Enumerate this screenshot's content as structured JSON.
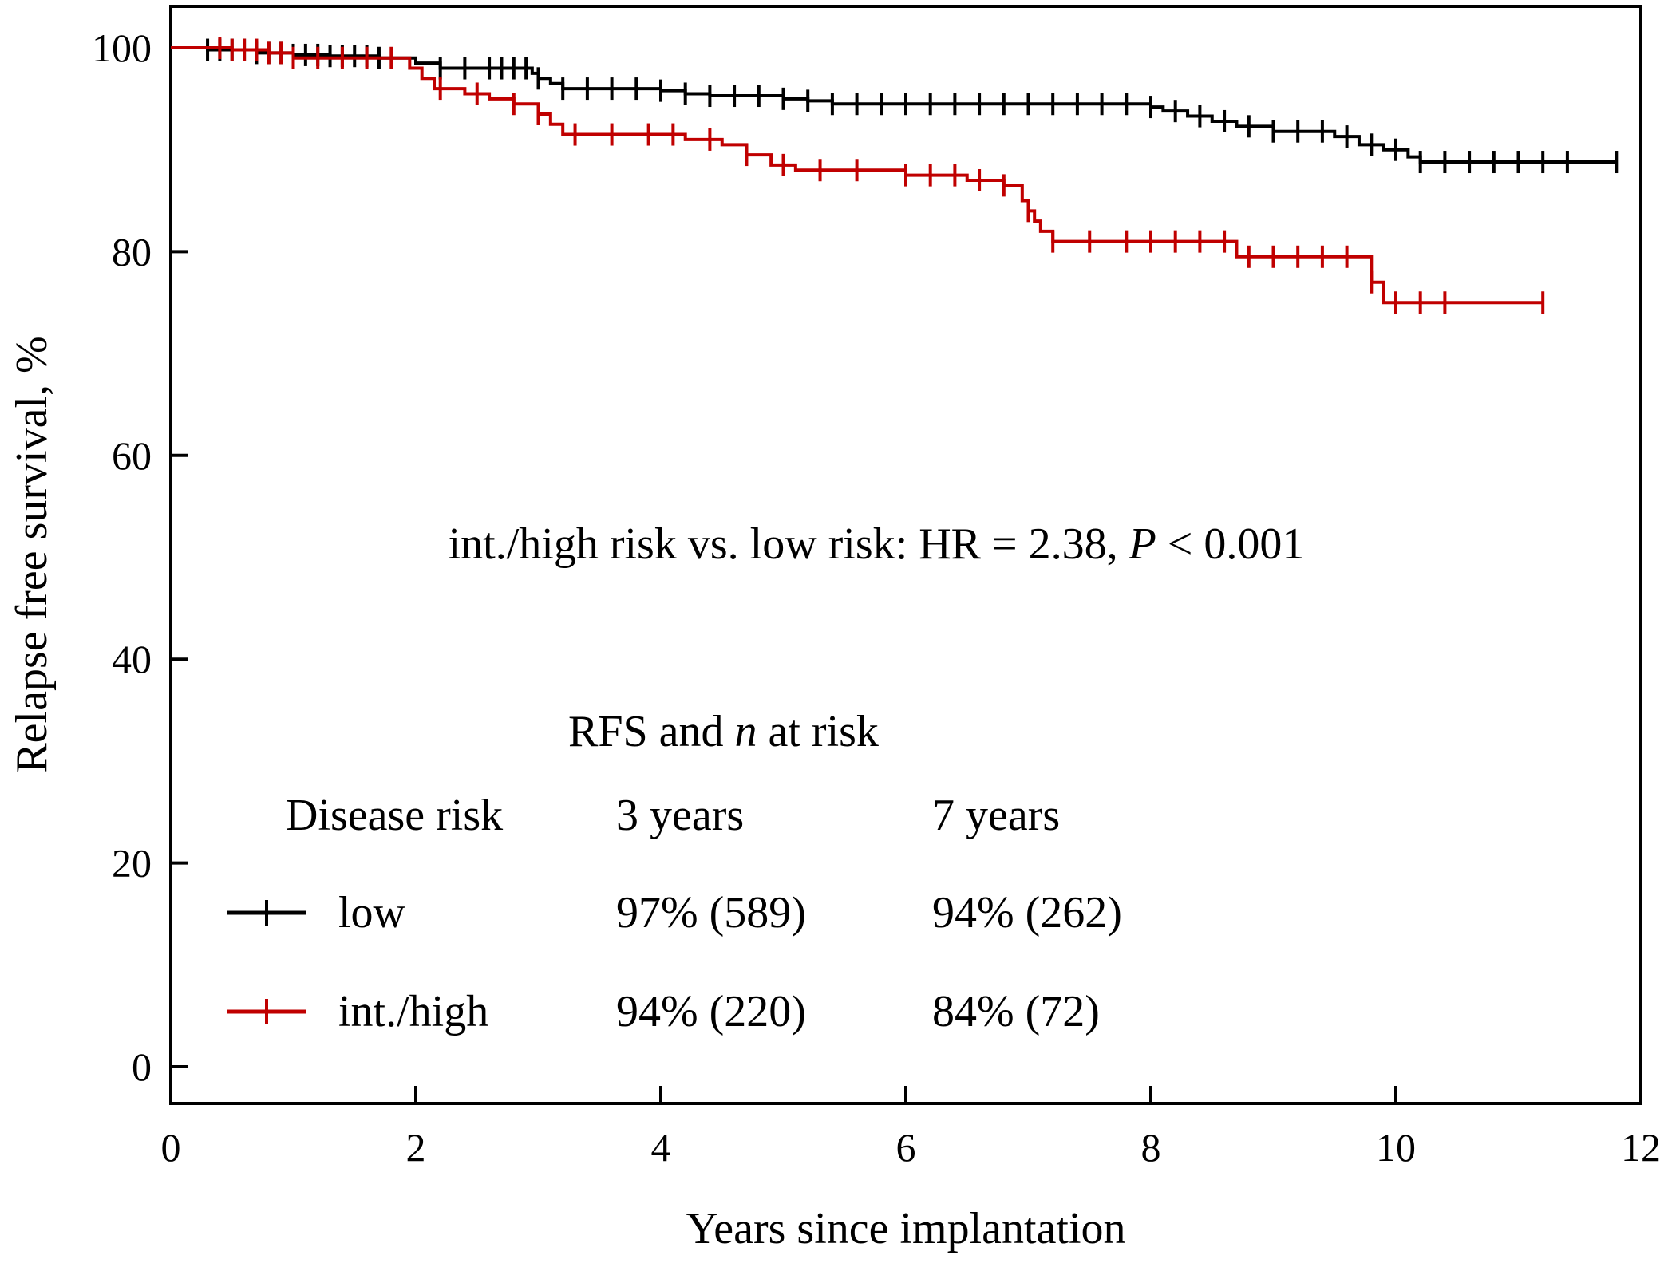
{
  "chart_data": {
    "type": "line",
    "step": true,
    "xlabel": "Years since implantation",
    "ylabel": "Relapse free survival, %",
    "xlim": [
      0,
      12
    ],
    "ylim": [
      0,
      100
    ],
    "xticks": [
      "0",
      "2",
      "4",
      "6",
      "8",
      "10",
      "12"
    ],
    "yticks": [
      "0",
      "20",
      "40",
      "60",
      "80",
      "100"
    ],
    "grid": false,
    "annotation": {
      "prefix": "int./high risk vs. low risk: HR = 2.38, ",
      "p_symbol": "P",
      "suffix": " < 0.001"
    },
    "legend": {
      "placement": "bottom-center",
      "title_prefix": "RFS and ",
      "title_n": "n",
      "title_suffix": " at risk",
      "headers": [
        "Disease risk",
        "3 years",
        "7 years"
      ],
      "rows": [
        {
          "label": "low",
          "col3": "97% (589)",
          "col7": "94% (262)",
          "color": "#000000"
        },
        {
          "label": "int./high",
          "col3": "94% (220)",
          "col7": "84% (72)",
          "color": "#c00000"
        }
      ]
    },
    "series": [
      {
        "name": "low",
        "color": "#000000",
        "steps": [
          [
            0,
            100
          ],
          [
            0.3,
            99.8
          ],
          [
            0.7,
            99.5
          ],
          [
            1.0,
            99.3
          ],
          [
            1.3,
            99.2
          ],
          [
            1.7,
            99.0
          ],
          [
            2.0,
            98.5
          ],
          [
            2.2,
            98.0
          ],
          [
            2.95,
            97.5
          ],
          [
            3.0,
            97.0
          ],
          [
            3.1,
            96.5
          ],
          [
            3.2,
            96.0
          ],
          [
            4.0,
            95.8
          ],
          [
            4.2,
            95.5
          ],
          [
            4.4,
            95.3
          ],
          [
            5.0,
            95.0
          ],
          [
            5.2,
            94.8
          ],
          [
            5.4,
            94.5
          ],
          [
            8.0,
            94.2
          ],
          [
            8.1,
            93.8
          ],
          [
            8.3,
            93.3
          ],
          [
            8.5,
            92.8
          ],
          [
            8.7,
            92.3
          ],
          [
            9.0,
            91.8
          ],
          [
            9.5,
            91.3
          ],
          [
            9.7,
            90.5
          ],
          [
            9.9,
            90.0
          ],
          [
            10.1,
            89.3
          ],
          [
            10.2,
            88.8
          ],
          [
            11.8,
            88.8
          ]
        ],
        "censor_x": [
          0.3,
          0.4,
          0.5,
          0.6,
          0.7,
          0.8,
          0.9,
          1.0,
          1.1,
          1.2,
          1.3,
          1.4,
          1.5,
          1.6,
          1.7,
          2.2,
          2.4,
          2.6,
          2.7,
          2.8,
          2.9,
          3.0,
          3.2,
          3.4,
          3.6,
          3.8,
          4.0,
          4.2,
          4.4,
          4.6,
          4.8,
          5.0,
          5.2,
          5.4,
          5.6,
          5.8,
          6.0,
          6.2,
          6.4,
          6.6,
          6.8,
          7.0,
          7.2,
          7.4,
          7.6,
          7.8,
          8.0,
          8.2,
          8.4,
          8.6,
          8.8,
          9.0,
          9.2,
          9.4,
          9.6,
          9.8,
          10.0,
          10.2,
          10.4,
          10.6,
          10.8,
          11.0,
          11.2,
          11.4,
          11.8
        ],
        "n_at_3y": 589,
        "n_at_7y": 262,
        "rfs_3y": 97,
        "rfs_7y": 94
      },
      {
        "name": "int./high",
        "color": "#c00000",
        "steps": [
          [
            0,
            100
          ],
          [
            0.5,
            99.8
          ],
          [
            0.8,
            99.5
          ],
          [
            1.0,
            99.0
          ],
          [
            1.8,
            99.0
          ],
          [
            1.95,
            98.0
          ],
          [
            2.05,
            97.0
          ],
          [
            2.15,
            96.0
          ],
          [
            2.4,
            95.5
          ],
          [
            2.6,
            95.0
          ],
          [
            2.8,
            94.5
          ],
          [
            3.0,
            93.5
          ],
          [
            3.1,
            92.5
          ],
          [
            3.2,
            91.5
          ],
          [
            4.2,
            91.0
          ],
          [
            4.5,
            90.5
          ],
          [
            4.7,
            89.5
          ],
          [
            4.9,
            88.5
          ],
          [
            5.1,
            88.0
          ],
          [
            6.0,
            87.5
          ],
          [
            6.5,
            87.0
          ],
          [
            6.8,
            86.5
          ],
          [
            6.95,
            85.0
          ],
          [
            7.0,
            84.0
          ],
          [
            7.05,
            83.0
          ],
          [
            7.1,
            82.0
          ],
          [
            7.2,
            81.0
          ],
          [
            8.7,
            79.5
          ],
          [
            9.8,
            77.0
          ],
          [
            9.9,
            75.0
          ],
          [
            11.2,
            75.0
          ]
        ],
        "censor_x": [
          0.4,
          0.5,
          0.6,
          0.7,
          0.8,
          0.9,
          1.0,
          1.2,
          1.4,
          1.6,
          1.8,
          2.2,
          2.5,
          2.8,
          3.0,
          3.3,
          3.6,
          3.9,
          4.1,
          4.4,
          4.7,
          5.0,
          5.3,
          5.6,
          6.0,
          6.2,
          6.4,
          6.6,
          6.8,
          7.0,
          7.2,
          7.5,
          7.8,
          8.0,
          8.2,
          8.4,
          8.6,
          8.8,
          9.0,
          9.2,
          9.4,
          9.6,
          9.8,
          10.0,
          10.2,
          10.4,
          11.2
        ],
        "n_at_3y": 220,
        "n_at_7y": 72,
        "rfs_3y": 94,
        "rfs_7y": 84
      }
    ]
  }
}
